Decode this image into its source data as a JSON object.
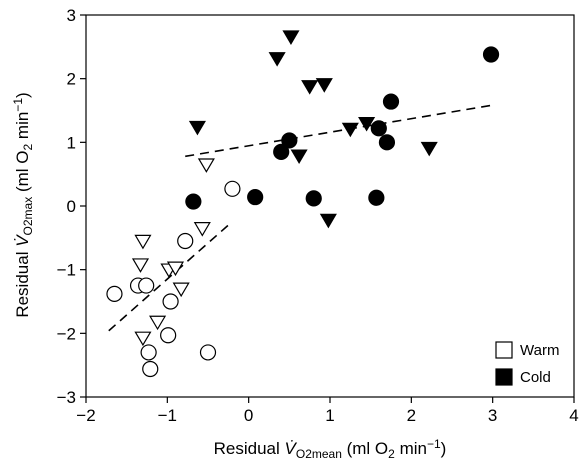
{
  "chart_data": {
    "type": "scatter",
    "xlabel": "Residual V̇O2mean (ml O2 min−1)",
    "ylabel": "Residual V̇O2max (ml O2 min−1)",
    "xlim": [
      -2,
      4
    ],
    "ylim": [
      -3,
      3
    ],
    "x_ticks": [
      "−2",
      "−1",
      "0",
      "1",
      "2",
      "3",
      "4"
    ],
    "y_ticks": [
      "−3",
      "−2",
      "−1",
      "0",
      "1",
      "2",
      "3"
    ],
    "grid": false,
    "legend_position": "bottom-right",
    "legend": [
      {
        "label": "Warm",
        "fill": "#ffffff"
      },
      {
        "label": "Cold",
        "fill": "#000000"
      }
    ],
    "series": [
      {
        "name": "Warm",
        "marker": "circle",
        "fill": "#ffffff",
        "points": [
          [
            -1.65,
            -1.38
          ],
          [
            -1.36,
            -1.25
          ],
          [
            -1.26,
            -1.25
          ],
          [
            -1.23,
            -2.3
          ],
          [
            -1.21,
            -2.56
          ],
          [
            -0.99,
            -2.03
          ],
          [
            -0.96,
            -1.5
          ],
          [
            -0.78,
            -0.55
          ],
          [
            -0.5,
            -2.3
          ],
          [
            -0.2,
            0.27
          ]
        ]
      },
      {
        "name": "Warm",
        "marker": "triangle-down",
        "fill": "#ffffff",
        "points": [
          [
            -1.3,
            -0.55
          ],
          [
            -1.33,
            -0.92
          ],
          [
            -1.3,
            -2.07
          ],
          [
            -1.12,
            -1.82
          ],
          [
            -0.98,
            -1.0
          ],
          [
            -0.9,
            -0.97
          ],
          [
            -0.83,
            -1.3
          ],
          [
            -0.57,
            -0.35
          ],
          [
            -0.52,
            0.65
          ]
        ]
      },
      {
        "name": "Cold",
        "marker": "circle",
        "fill": "#000000",
        "points": [
          [
            -0.68,
            0.07
          ],
          [
            0.08,
            0.14
          ],
          [
            0.4,
            0.85
          ],
          [
            0.5,
            1.03
          ],
          [
            0.8,
            0.12
          ],
          [
            1.57,
            0.13
          ],
          [
            1.6,
            1.22
          ],
          [
            1.7,
            1.0
          ],
          [
            1.75,
            1.64
          ],
          [
            2.98,
            2.38
          ]
        ]
      },
      {
        "name": "Cold",
        "marker": "triangle-down",
        "fill": "#000000",
        "points": [
          [
            -0.63,
            1.24
          ],
          [
            0.35,
            2.32
          ],
          [
            0.52,
            2.66
          ],
          [
            0.62,
            0.79
          ],
          [
            0.75,
            1.88
          ],
          [
            0.93,
            1.91
          ],
          [
            0.98,
            -0.22
          ],
          [
            1.25,
            1.21
          ],
          [
            1.45,
            1.3
          ],
          [
            2.22,
            0.91
          ]
        ]
      }
    ],
    "regression_lines": [
      {
        "group": "Warm",
        "x": [
          -1.72,
          -0.25
        ],
        "y": [
          -1.96,
          -0.3
        ]
      },
      {
        "group": "Cold",
        "x": [
          -0.78,
          2.98
        ],
        "y": [
          0.78,
          1.58
        ]
      }
    ]
  }
}
